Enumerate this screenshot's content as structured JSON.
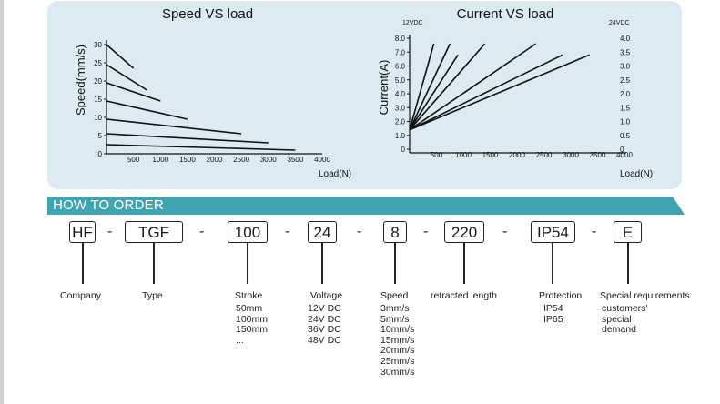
{
  "chart_data": [
    {
      "type": "line",
      "title": "Speed VS load",
      "xlabel": "Load(N)",
      "ylabel": "Speed(mm/s)",
      "xlim": [
        0,
        4000
      ],
      "ylim": [
        0,
        30
      ],
      "x_ticks": [
        "500",
        "1000",
        "1500",
        "2000",
        "2500",
        "3000",
        "3500",
        "4000"
      ],
      "y_ticks": [
        "0",
        "5",
        "10",
        "15",
        "20",
        "25",
        "30"
      ],
      "grid": false,
      "series": [
        {
          "x": [
            0,
            500
          ],
          "y": [
            30,
            23.5
          ]
        },
        {
          "x": [
            0,
            750
          ],
          "y": [
            24.5,
            17.5
          ]
        },
        {
          "x": [
            0,
            1000
          ],
          "y": [
            19.5,
            14.5
          ]
        },
        {
          "x": [
            0,
            1500
          ],
          "y": [
            14.5,
            9.5
          ]
        },
        {
          "x": [
            0,
            2500
          ],
          "y": [
            9.5,
            5.5
          ]
        },
        {
          "x": [
            0,
            3000
          ],
          "y": [
            5.5,
            3
          ]
        },
        {
          "x": [
            0,
            3500
          ],
          "y": [
            2.5,
            1
          ]
        }
      ]
    },
    {
      "type": "line",
      "title": "Current VS load",
      "xlabel": "Load(N)",
      "ylabel": "Current(A)",
      "xlim": [
        0,
        4000
      ],
      "ylim": [
        0,
        8
      ],
      "ylim_right": [
        0,
        4
      ],
      "left_axis_label": "12VDC",
      "right_axis_label": "24VDC",
      "x_ticks": [
        "500",
        "1000",
        "1500",
        "2000",
        "2500",
        "3000",
        "3500",
        "4000"
      ],
      "y_ticks": [
        "0",
        "1.0",
        "2.0",
        "3.0",
        "4.0",
        "5.0",
        "6.0",
        "7.0",
        "8.0"
      ],
      "y_ticks_right": [
        "0",
        "0.5",
        "1.0",
        "1.5",
        "2.0",
        "2.5",
        "3.0",
        "3.5",
        "4.0"
      ],
      "grid": false,
      "series": [
        {
          "x": [
            0,
            450
          ],
          "y": [
            1.4,
            7.6
          ]
        },
        {
          "x": [
            0,
            750
          ],
          "y": [
            1.4,
            7.6
          ]
        },
        {
          "x": [
            0,
            900
          ],
          "y": [
            1.4,
            6.8
          ]
        },
        {
          "x": [
            0,
            1400
          ],
          "y": [
            1.4,
            7.6
          ]
        },
        {
          "x": [
            0,
            2350
          ],
          "y": [
            1.4,
            7.6
          ]
        },
        {
          "x": [
            0,
            2850
          ],
          "y": [
            1.4,
            6.8
          ]
        },
        {
          "x": [
            0,
            3350
          ],
          "y": [
            1.4,
            6.8
          ]
        }
      ]
    }
  ],
  "colors": {
    "panel": "#dcebf1",
    "banner": "#3fa3b0",
    "line": "#111111"
  },
  "order": {
    "title": "HOW TO ORDER",
    "codes": {
      "company": "HF",
      "type": "TGF",
      "stroke": "100",
      "voltage": "24",
      "speed": "8",
      "retracted": "220",
      "protection": "IP54",
      "special": "E"
    },
    "dashes": [
      "-",
      "-",
      "-",
      "-",
      "-",
      "-",
      "-"
    ],
    "captions": {
      "company": "Company",
      "type": "Type",
      "stroke": "Stroke",
      "voltage": "Voltage",
      "speed": "Speed",
      "retracted": "retracted length",
      "protection": "Protection",
      "special": "Special requirements"
    },
    "options": {
      "stroke": [
        "50mm",
        "100mm",
        "150mm",
        "..."
      ],
      "voltage": [
        "12V DC",
        "24V DC",
        "36V DC",
        "48V DC"
      ],
      "speed": [
        "3mm/s",
        "5mm/s",
        "10mm/s",
        "15mm/s",
        "20mm/s",
        "25mm/s",
        "30mm/s"
      ],
      "protection": [
        "IP54",
        "IP65"
      ],
      "special": [
        "customers'",
        "special",
        "demand"
      ]
    }
  }
}
